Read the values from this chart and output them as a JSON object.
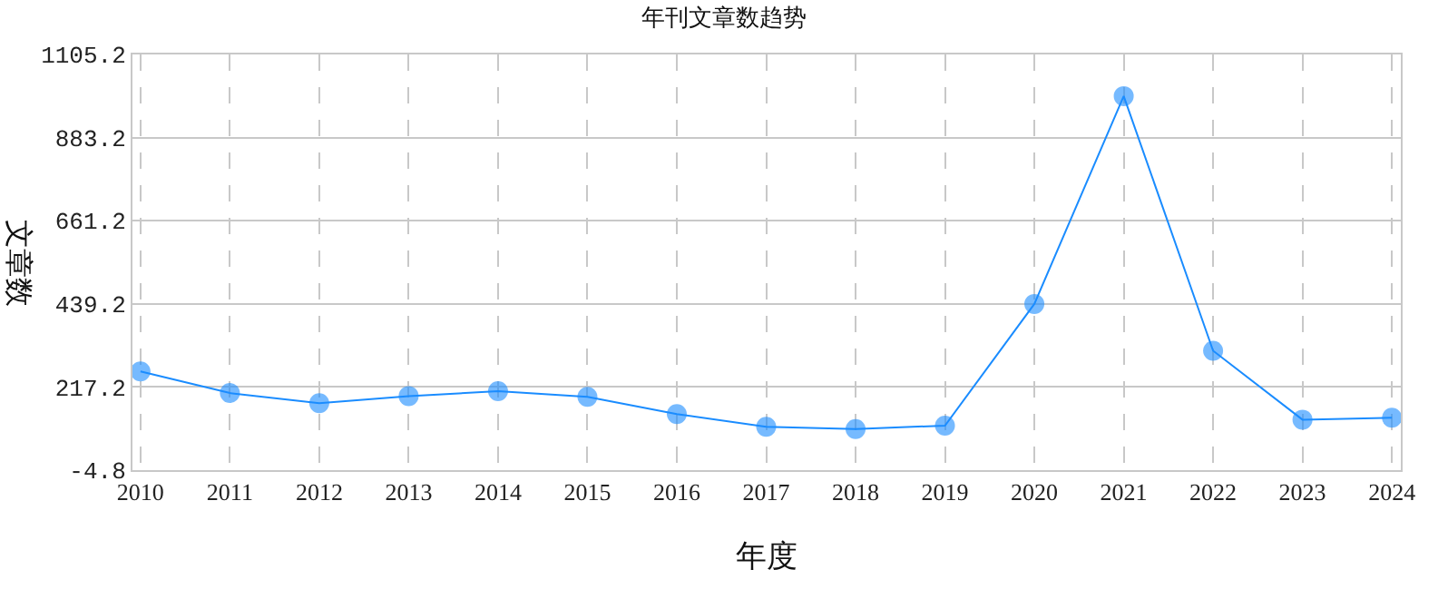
{
  "chart_data": {
    "type": "line",
    "title": "年刊文章数趋势",
    "xlabel": "年度",
    "ylabel": "文章数",
    "categories": [
      "2010",
      "2011",
      "2012",
      "2013",
      "2014",
      "2015",
      "2016",
      "2017",
      "2018",
      "2019",
      "2020",
      "2021",
      "2022",
      "2023",
      "2024"
    ],
    "series": [
      {
        "color": "#1a8cff",
        "values": [
          259,
          201,
          174,
          193,
          206,
          191,
          145,
          111,
          105,
          114,
          439,
          994,
          314,
          130,
          135
        ]
      }
    ],
    "ylim": [
      -4.8,
      1105.2
    ],
    "yticks": [
      -4.8,
      217.2,
      439.2,
      661.2,
      883.2,
      1105.2
    ],
    "grid": true,
    "marker": "circle",
    "line_style": "solid",
    "legend": false
  }
}
